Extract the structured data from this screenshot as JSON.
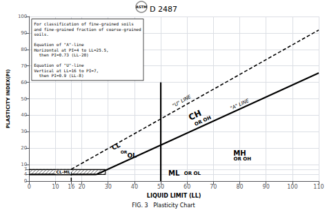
{
  "chart_data": {
    "type": "line",
    "title": "D 2487",
    "logo": "ASTM",
    "caption": "FIG. 3   Plasticity Chart",
    "xlabel": "LIQUID LIMIT (LL)",
    "ylabel": "PLASTICITY INDEX(PI)",
    "xlim": [
      0,
      110
    ],
    "ylim": [
      0,
      100
    ],
    "xticks": [
      0,
      10,
      16,
      20,
      30,
      40,
      50,
      60,
      70,
      80,
      90,
      100,
      110
    ],
    "yticks": [
      0,
      4,
      7,
      10,
      20,
      30,
      40,
      50,
      60,
      70,
      80,
      90,
      100
    ],
    "grid": true,
    "series": [
      {
        "x": [
          0,
          25.5
        ],
        "values": [
          4,
          4
        ],
        "line_style": "bold",
        "color": "#000000"
      },
      {
        "x": [
          25.5,
          110
        ],
        "values": [
          4.015,
          65.7
        ],
        "line_style": "bold",
        "color": "#000000"
      },
      {
        "x": [
          16,
          16
        ],
        "values": [
          0,
          7
        ],
        "line_style": "dashed",
        "color": "#000000"
      },
      {
        "x": [
          16,
          110
        ],
        "values": [
          7.2,
          91.8
        ],
        "line_style": "dashed",
        "color": "#000000"
      },
      {
        "x": [
          50,
          50
        ],
        "values": [
          0,
          60
        ],
        "line_style": "bold",
        "color": "#000000"
      },
      {
        "x": [
          0,
          16
        ],
        "values": [
          7,
          7
        ],
        "line_style": "thin-dashed",
        "color": "#000000"
      },
      {
        "x": [
          0,
          29
        ],
        "values": [
          7,
          7
        ],
        "line_style": "thin",
        "color": "#000000"
      },
      {
        "x": [
          0,
          29
        ],
        "values": [
          4,
          4
        ],
        "line_style": "thin",
        "color": "#000000"
      }
    ],
    "hatched_box": {
      "x": [
        0,
        29
      ],
      "y": [
        4,
        7
      ],
      "color": "#000000"
    },
    "annotations": [
      "\"U\" LINE",
      "\"A\" LINE",
      "CH",
      "OR OH",
      "CL",
      "OR",
      "OL",
      "MH",
      "OR OH",
      "ML",
      "OR OL",
      "CL-ML"
    ],
    "annotation_text": "For classification of fine-grained soils\nand fine-grained fraction of coarse-grained\nsoils.\n\nEquation of \"A\"-line\nHorizontal at PI=4 to LL=25.5,\n  then PI=0.73 (LL-20)\n\nEquation of \"U\"-line\nVertical at LL=16 to PI=7,\n  then PI=0.9 (LL-8)"
  }
}
